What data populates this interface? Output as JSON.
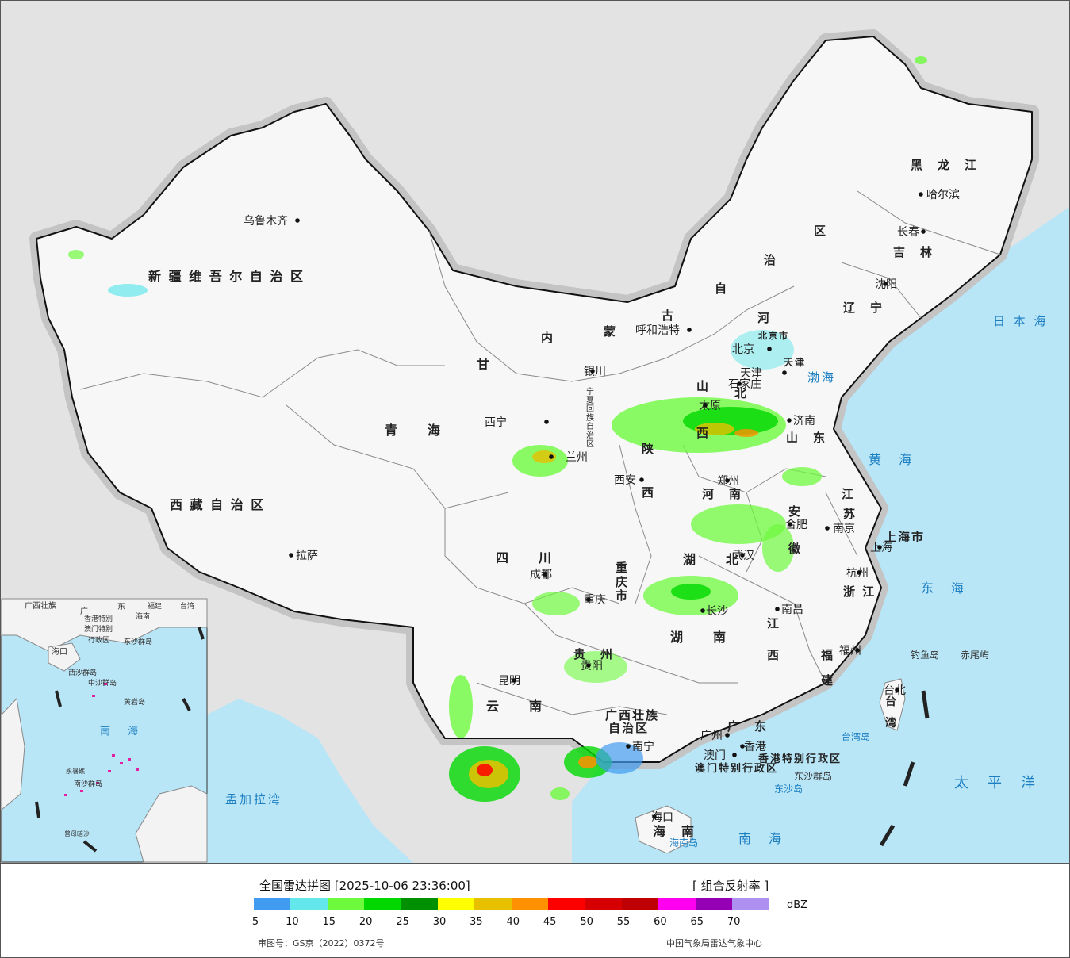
{
  "map": {
    "cities": [
      {
        "name": "乌鲁木齐"
      },
      {
        "name": "拉萨"
      },
      {
        "name": "西宁"
      },
      {
        "name": "银川"
      },
      {
        "name": "兰州"
      },
      {
        "name": "呼和浩特"
      },
      {
        "name": "北京"
      },
      {
        "name": "天津"
      },
      {
        "name": "石家庄"
      },
      {
        "name": "太原"
      },
      {
        "name": "济南"
      },
      {
        "name": "郑州"
      },
      {
        "name": "西安"
      },
      {
        "name": "成都"
      },
      {
        "name": "重庆"
      },
      {
        "name": "武汉"
      },
      {
        "name": "合肥"
      },
      {
        "name": "南京"
      },
      {
        "name": "上海"
      },
      {
        "name": "杭州"
      },
      {
        "name": "南昌"
      },
      {
        "name": "长沙"
      },
      {
        "name": "福州"
      },
      {
        "name": "台北"
      },
      {
        "name": "贵阳"
      },
      {
        "name": "昆明"
      },
      {
        "name": "南宁"
      },
      {
        "name": "广州"
      },
      {
        "name": "香港"
      },
      {
        "name": "澳门"
      },
      {
        "name": "海口"
      },
      {
        "name": "哈尔滨"
      },
      {
        "name": "长春"
      },
      {
        "name": "沈阳"
      }
    ],
    "regions": {
      "xinjiang": "新 疆 维 吾 尔 自 治 区",
      "xizang": "西 藏 自 治 区",
      "qinghai": "青　　海",
      "gansu": "甘",
      "sichuan": "四　　川",
      "yunnan": "云　　南",
      "guizhou": "贵　州",
      "guangxi_1": "广西壮族",
      "guangxi_2": "自治区",
      "guangdong": "广　东",
      "hainan": "海　南",
      "hunan": "湖　　南",
      "hubei": "湖　　北",
      "jiangxi_1": "江",
      "jiangxi_2": "西",
      "fujian_1": "福",
      "fujian_2": "建",
      "zhejiang": "浙 江",
      "anhui_1": "安",
      "anhui_2": "徽",
      "jiangsu_1": "江",
      "jiangsu_2": "苏",
      "shandong": "山　东",
      "henan": "河　南",
      "shaanxi_1": "陕",
      "shaanxi_2": "西",
      "shanxi_1": "山",
      "shanxi_2": "西",
      "hebei_1": "河",
      "hebei_2": "北",
      "neimenggu_1": "内",
      "neimenggu_2": "蒙",
      "neimenggu_3": "古",
      "neimenggu_4": "自",
      "neimenggu_5": "治",
      "neimenggu_6": "区",
      "heilongjiang": "黑　龙　江",
      "jilin": "吉　林",
      "liaoning": "辽　宁",
      "chongqing_1": "重",
      "chongqing_2": "庆",
      "chongqing_3": "市",
      "ningxia": "宁夏回族自治区",
      "shanghai": "上海市",
      "taiwan_1": "台",
      "taiwan_2": "湾",
      "hk_sar": "香港特别行政区",
      "macau_sar": "澳门特别行政区",
      "beijing_shi": "北京市",
      "tianjin_shi": "天津"
    },
    "seas": {
      "bohai": "渤海",
      "huanghai": "黄　海",
      "donghai": "东　海",
      "nanhai": "南　海",
      "taipingyang": "太　平　洋",
      "ribenhai": "日 本 海",
      "mengjiala": "孟加拉湾"
    },
    "islands": {
      "diaoyu": "钓鱼岛",
      "chiwei": "赤尾屿",
      "dongsha_qundao": "东沙群岛",
      "dongsha_dao": "东沙岛",
      "hainan_dao": "海南岛",
      "taiwan_dao": "台湾岛"
    },
    "inset": {
      "labels": [
        "广西壮族",
        "广",
        "东",
        "福建",
        "台湾",
        "香港特别",
        "澳门特别",
        "行政区",
        "东沙群岛",
        "海口",
        "西沙群岛",
        "中沙群岛",
        "黄岩岛",
        "南",
        "海",
        "永暑礁",
        "南沙群岛",
        "曾母暗沙",
        "海南"
      ]
    }
  },
  "legend": {
    "title": "全国雷达拼图 [2025-10-06 23:36:00]",
    "product": "[ 组合反射率 ]",
    "unit": "dBZ",
    "colors": [
      "#419bf0",
      "#64e7eb",
      "#6dfa3d",
      "#00d800",
      "#019001",
      "#ffff00",
      "#e7c000",
      "#ff9000",
      "#ff0000",
      "#d60000",
      "#c00000",
      "#ff00f0",
      "#9600b4",
      "#ad90f0"
    ],
    "ticks": [
      "5",
      "10",
      "15",
      "20",
      "25",
      "30",
      "35",
      "40",
      "45",
      "50",
      "55",
      "60",
      "65",
      "70"
    ],
    "approval": "审图号：GS京（2022）0372号",
    "source": "中国气象局雷达气象中心"
  }
}
